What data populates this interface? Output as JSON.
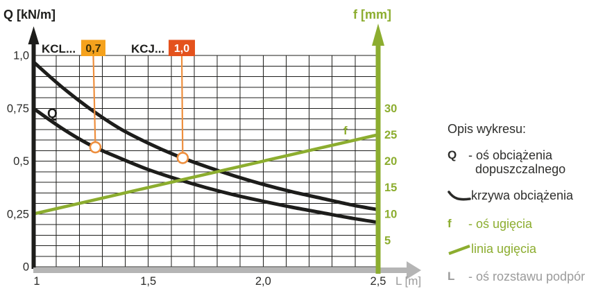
{
  "titles": {
    "y_left": "Q [kN/m]",
    "y_right": "f [mm]",
    "x_bottom": "L [m]"
  },
  "series_callouts": {
    "kcl_label": "KCL...",
    "kcl_badge": "0,7",
    "kcj_label": "KCJ...",
    "kcj_badge": "1,0"
  },
  "inline_labels": {
    "q_curve": "Q",
    "f_line": "f"
  },
  "chart_data": {
    "type": "line",
    "title": "",
    "x_axis": {
      "label": "L [m]",
      "unit": "m",
      "range": [
        1.0,
        2.5
      ],
      "tick_labels": [
        "1",
        "1,5",
        "2,0",
        "2,5"
      ],
      "tick_values": [
        1.0,
        1.5,
        2.0,
        2.5
      ],
      "minor_step": 0.1,
      "grid": true
    },
    "y_axis_left": {
      "label": "Q [kN/m]",
      "unit": "kN/m",
      "range": [
        0,
        1.0
      ],
      "tick_labels": [
        "1,0",
        "0,75",
        "0,5",
        "0,25",
        "0"
      ],
      "tick_values": [
        1.0,
        0.75,
        0.5,
        0.25,
        0
      ],
      "minor_step": 0.05
    },
    "y_axis_right": {
      "label": "f [mm]",
      "unit": "mm",
      "range": [
        0,
        40
      ],
      "tick_labels": [
        "30",
        "25",
        "20",
        "15",
        "10",
        "5"
      ],
      "tick_values": [
        30,
        25,
        20,
        15,
        10,
        5
      ]
    },
    "series": [
      {
        "name": "KCJ...",
        "badge": "1,0",
        "axis": "left",
        "color": "#1d1d1b",
        "width": 5,
        "marker_l": 1.65,
        "points": [
          [
            1.0,
            0.97
          ],
          [
            1.125,
            0.85
          ],
          [
            1.25,
            0.745
          ],
          [
            1.375,
            0.655
          ],
          [
            1.5,
            0.585
          ],
          [
            1.625,
            0.525
          ],
          [
            1.75,
            0.475
          ],
          [
            1.875,
            0.43
          ],
          [
            2.0,
            0.39
          ],
          [
            2.125,
            0.355
          ],
          [
            2.25,
            0.325
          ],
          [
            2.375,
            0.295
          ],
          [
            2.5,
            0.27
          ]
        ]
      },
      {
        "name": "KCL...",
        "badge": "0,7",
        "axis": "left",
        "color": "#1d1d1b",
        "width": 5,
        "marker_l": 1.27,
        "points": [
          [
            1.0,
            0.75
          ],
          [
            1.125,
            0.655
          ],
          [
            1.25,
            0.575
          ],
          [
            1.375,
            0.515
          ],
          [
            1.5,
            0.46
          ],
          [
            1.625,
            0.415
          ],
          [
            1.75,
            0.375
          ],
          [
            1.875,
            0.34
          ],
          [
            2.0,
            0.31
          ],
          [
            2.125,
            0.282
          ],
          [
            2.25,
            0.257
          ],
          [
            2.375,
            0.232
          ],
          [
            2.5,
            0.21
          ]
        ]
      },
      {
        "name": "linia ugięcia (f)",
        "axis": "right",
        "color": "#8CAD2F",
        "width": 4.5,
        "points": [
          [
            1.0,
            10
          ],
          [
            2.5,
            25
          ]
        ]
      }
    ],
    "colors": {
      "badge_kcl": "#F5A21D",
      "badge_kcl_text": "#3A2D05",
      "badge_kcj": "#E4521D",
      "badge_kcj_text": "#FFFFFF",
      "connector_orange": "#EE8F3E",
      "axis_gray": "#B5B5B5",
      "green": "#8CAD2F",
      "black": "#1d1d1b"
    }
  },
  "legend": {
    "heading": "Opis wykresu:",
    "items": [
      {
        "symbol": "Q",
        "label": "- oś obciążenia\n  dopuszczalnego",
        "color": "black"
      },
      {
        "symbol": "load-curve-icon",
        "label": "krzywa obciążenia",
        "color": "black"
      },
      {
        "symbol": "f",
        "label": "- oś ugięcia",
        "color": "green"
      },
      {
        "symbol": "deflection-line-icon",
        "label": "linia ugięcia",
        "color": "green"
      },
      {
        "symbol": "L",
        "label": "- oś rozstawu podpór",
        "color": "gray"
      }
    ]
  }
}
